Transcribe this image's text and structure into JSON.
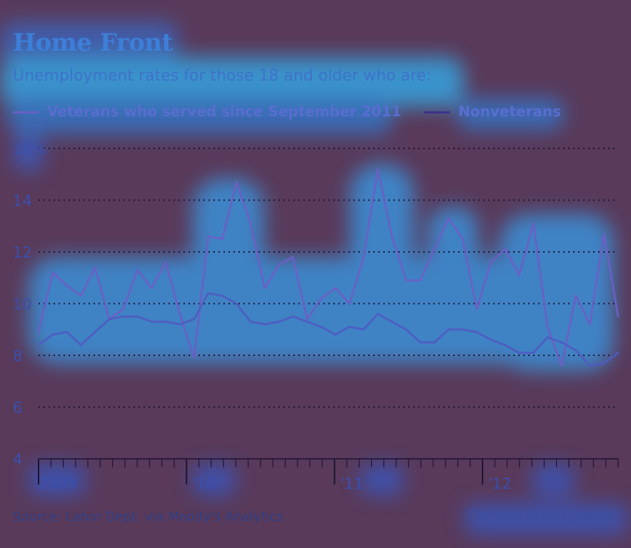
{
  "chart_data": {
    "type": "line",
    "title": "Home Front",
    "subtitle": "Unemployment rates for those 18 and older who are:",
    "ylim": [
      4,
      16
    ],
    "yticks": [
      "16%",
      "14",
      "12",
      "10",
      "8",
      "6",
      "4"
    ],
    "year_labels": [
      "2009",
      "'10",
      "'11",
      "'12"
    ],
    "grid": true,
    "legend_position": "top",
    "series": [
      {
        "name": "Veterans who served since September 2011",
        "color": "#6a5fc4",
        "values": [
          8.9,
          11.2,
          10.7,
          10.3,
          11.4,
          9.4,
          9.8,
          11.3,
          10.6,
          11.6,
          9.6,
          7.9,
          12.6,
          12.5,
          14.7,
          13.1,
          10.6,
          11.5,
          11.8,
          9.4,
          10.2,
          10.6,
          10.0,
          11.8,
          15.2,
          12.6,
          10.9,
          10.9,
          12.1,
          13.3,
          12.5,
          9.8,
          11.6,
          12.1,
          11.1,
          13.1,
          9.1,
          7.6,
          10.3,
          9.2,
          12.7,
          9.5
        ]
      },
      {
        "name": "Nonveterans",
        "color": "#4f5cc0",
        "values": [
          8.4,
          8.8,
          8.9,
          8.4,
          8.9,
          9.4,
          9.5,
          9.5,
          9.3,
          9.3,
          9.2,
          9.4,
          10.4,
          10.3,
          10.0,
          9.3,
          9.2,
          9.3,
          9.5,
          9.3,
          9.1,
          8.8,
          9.1,
          9.0,
          9.6,
          9.3,
          9.0,
          8.5,
          8.5,
          9.0,
          9.0,
          8.9,
          8.6,
          8.4,
          8.1,
          8.1,
          8.7,
          8.5,
          8.2,
          7.6,
          7.7,
          8.1
        ]
      }
    ]
  },
  "source": "Source: Labor Dept. via Moody's Analytics",
  "credit": "The Wall Street Journal"
}
